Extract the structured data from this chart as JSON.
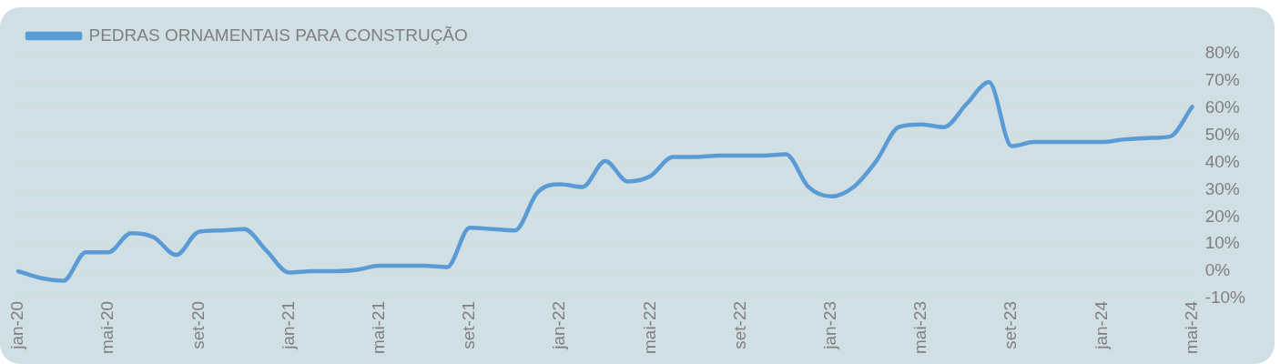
{
  "chart_data": {
    "type": "line",
    "categories": [
      "jan-20",
      null,
      null,
      null,
      "mai-20",
      null,
      null,
      null,
      "set-20",
      null,
      null,
      null,
      "jan-21",
      null,
      null,
      null,
      "mai-21",
      null,
      null,
      null,
      "set-21",
      null,
      null,
      null,
      "jan-22",
      null,
      null,
      null,
      "mai-22",
      null,
      null,
      null,
      "set-22",
      null,
      null,
      null,
      "jan-23",
      null,
      null,
      null,
      "mai-23",
      null,
      null,
      null,
      "set-23",
      null,
      null,
      null,
      "jan-24",
      null,
      null,
      null,
      "mai-24"
    ],
    "series": [
      {
        "name": "PEDRAS ORNAMENTAIS PARA CONSTRUÇÃO",
        "color": "#5b9bd5",
        "values": [
          0,
          -2.5,
          -3.5,
          7,
          7,
          14,
          12.5,
          6,
          14.5,
          15,
          15.5,
          7.5,
          -0.5,
          0,
          0,
          0.5,
          2,
          2,
          2,
          1.5,
          16,
          15.5,
          15,
          29,
          32,
          31,
          40.5,
          33,
          35,
          42,
          42,
          42.5,
          42.5,
          42.5,
          43,
          31,
          27.5,
          31,
          40.5,
          53,
          54,
          53,
          61.5,
          69.5,
          46,
          47.5,
          47.5,
          47.5,
          47.5,
          48.5,
          49,
          49.5,
          60.5
        ]
      }
    ],
    "ylim": [
      -10,
      80
    ],
    "yticks": [
      {
        "value": -10,
        "label": "-10%"
      },
      {
        "value": 0,
        "label": "0%"
      },
      {
        "value": 10,
        "label": "10%"
      },
      {
        "value": 20,
        "label": "20%"
      },
      {
        "value": 30,
        "label": "30%"
      },
      {
        "value": 40,
        "label": "40%"
      },
      {
        "value": 50,
        "label": "50%"
      },
      {
        "value": 60,
        "label": "60%"
      },
      {
        "value": 70,
        "label": "70%"
      },
      {
        "value": 80,
        "label": "80%"
      }
    ],
    "grid": "y",
    "legend": "top left",
    "marker": "none",
    "line_style": "solid"
  }
}
